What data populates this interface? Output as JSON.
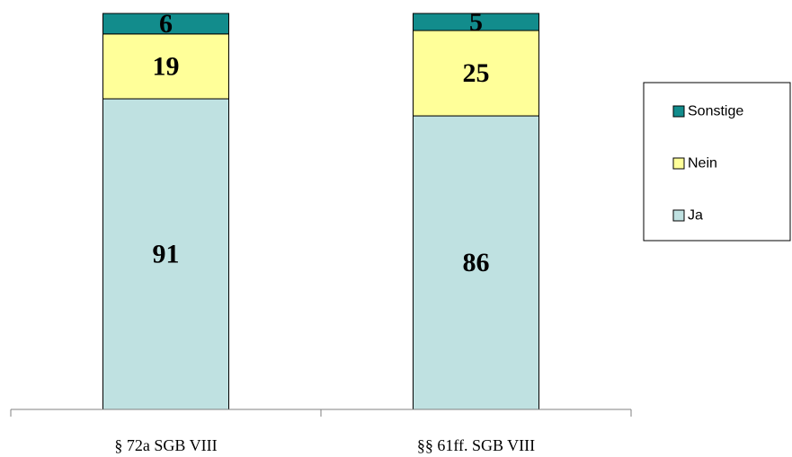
{
  "chart_data": {
    "type": "bar",
    "stacked": true,
    "categories": [
      "§ 72a SGB VIII",
      "§§ 61ff. SGB VIII"
    ],
    "series": [
      {
        "name": "Ja",
        "values": [
          91,
          86
        ],
        "color": "#bfe1e1"
      },
      {
        "name": "Nein",
        "values": [
          19,
          25
        ],
        "color": "#ffff99"
      },
      {
        "name": "Sonstige",
        "values": [
          6,
          5
        ],
        "color": "#128c8c"
      }
    ],
    "title": "",
    "xlabel": "",
    "ylabel": "",
    "ylim": [
      0,
      116
    ],
    "grid": false,
    "legend": "right",
    "legend_order": [
      "Sonstige",
      "Nein",
      "Ja"
    ]
  }
}
